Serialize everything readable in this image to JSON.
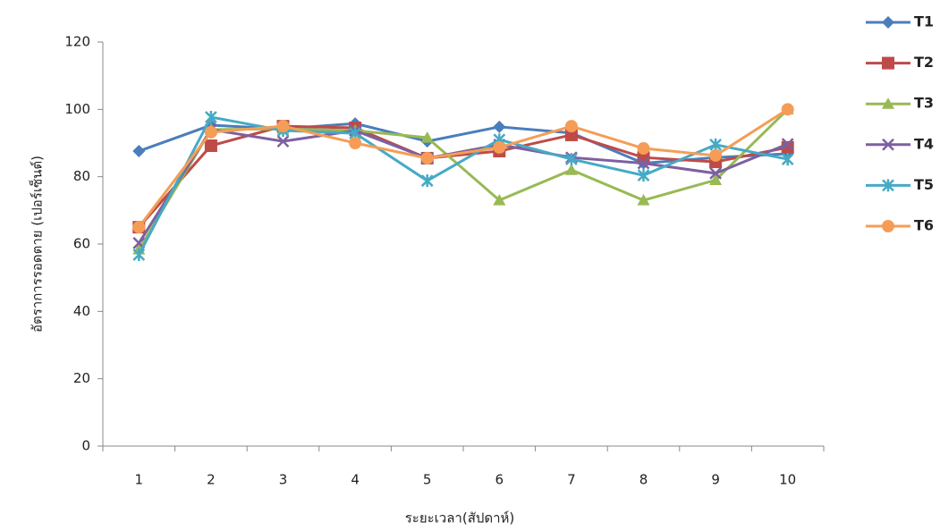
{
  "chart_data": {
    "type": "line",
    "x_label": "ระยะเวลา(สัปดาห์)",
    "y_label": "อัตราการรอดตาย (เปอร์เซ็นต์)",
    "categories": [
      "1",
      "2",
      "3",
      "4",
      "5",
      "6",
      "7",
      "8",
      "9",
      "10"
    ],
    "ylim": [
      0,
      120
    ],
    "yticks": [
      0,
      20,
      40,
      60,
      80,
      100,
      120
    ],
    "grid": false,
    "legend": "right",
    "series": [
      {
        "name": "T1",
        "color": "#4a7ebb",
        "marker": "diamond",
        "values": [
          87.6,
          95.3,
          94.2,
          95.8,
          90.5,
          94.8,
          93.0,
          84.0,
          85.7,
          86.8
        ]
      },
      {
        "name": "T2",
        "color": "#be4b48",
        "marker": "square",
        "values": [
          65.0,
          89.2,
          95.0,
          94.5,
          85.5,
          87.6,
          92.4,
          85.7,
          84.4,
          88.7
        ]
      },
      {
        "name": "T3",
        "color": "#98b954",
        "marker": "triangle",
        "values": [
          58.4,
          94.0,
          94.2,
          93.7,
          91.6,
          73.0,
          82.0,
          73.0,
          79.0,
          100.0
        ]
      },
      {
        "name": "T4",
        "color": "#7d60a0",
        "marker": "x",
        "values": [
          60.3,
          94.0,
          90.5,
          93.7,
          85.5,
          89.5,
          85.7,
          84.0,
          81.0,
          89.7
        ]
      },
      {
        "name": "T5",
        "color": "#46aac5",
        "marker": "star",
        "values": [
          56.8,
          97.7,
          93.7,
          92.9,
          78.8,
          91.0,
          85.2,
          80.4,
          89.5,
          85.2
        ]
      },
      {
        "name": "T6",
        "color": "#f59d56",
        "marker": "circle",
        "values": [
          65.0,
          93.2,
          95.0,
          90.0,
          85.5,
          88.7,
          95.0,
          88.4,
          86.3,
          100.0
        ]
      }
    ]
  }
}
